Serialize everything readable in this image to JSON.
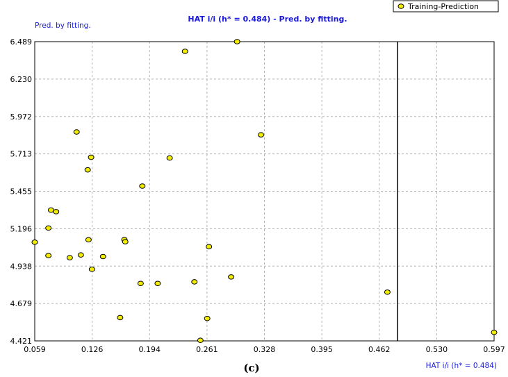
{
  "chart_data": {
    "type": "scatter",
    "title": "HAT i/i (h* = 0.484) - Pred. by fitting.",
    "ylabel": "Pred. by fitting.",
    "xlabel": "HAT i/i (h* = 0.484)",
    "caption": "(c)",
    "xlim": [
      0.059,
      0.597
    ],
    "ylim": [
      4.421,
      6.489
    ],
    "x_ticks": [
      "0.059",
      "0.126",
      "0.194",
      "0.261",
      "0.328",
      "0.395",
      "0.462",
      "0.530",
      "0.597"
    ],
    "y_ticks": [
      "4.421",
      "4.679",
      "4.938",
      "5.196",
      "5.455",
      "5.713",
      "5.972",
      "6.230",
      "6.489"
    ],
    "threshold_x": 0.484,
    "grid": true,
    "legend_position": "top-right",
    "series": [
      {
        "name": "Training-Prediction",
        "color": "#f2ec00",
        "edge_color": "#000000",
        "marker": "circle",
        "points": [
          {
            "x": 0.059,
            "y": 5.103
          },
          {
            "x": 0.075,
            "y": 5.011
          },
          {
            "x": 0.075,
            "y": 5.201
          },
          {
            "x": 0.078,
            "y": 5.325
          },
          {
            "x": 0.084,
            "y": 5.314
          },
          {
            "x": 0.1,
            "y": 4.996
          },
          {
            "x": 0.108,
            "y": 5.865
          },
          {
            "x": 0.113,
            "y": 5.015
          },
          {
            "x": 0.121,
            "y": 5.603
          },
          {
            "x": 0.122,
            "y": 5.12
          },
          {
            "x": 0.125,
            "y": 5.69
          },
          {
            "x": 0.126,
            "y": 4.916
          },
          {
            "x": 0.139,
            "y": 5.004
          },
          {
            "x": 0.159,
            "y": 4.582
          },
          {
            "x": 0.164,
            "y": 5.121
          },
          {
            "x": 0.165,
            "y": 5.106
          },
          {
            "x": 0.183,
            "y": 4.818
          },
          {
            "x": 0.185,
            "y": 5.491
          },
          {
            "x": 0.203,
            "y": 4.818
          },
          {
            "x": 0.217,
            "y": 5.685
          },
          {
            "x": 0.235,
            "y": 6.422
          },
          {
            "x": 0.246,
            "y": 4.829
          },
          {
            "x": 0.253,
            "y": 4.425
          },
          {
            "x": 0.261,
            "y": 4.576
          },
          {
            "x": 0.263,
            "y": 5.072
          },
          {
            "x": 0.289,
            "y": 4.863
          },
          {
            "x": 0.296,
            "y": 6.489
          },
          {
            "x": 0.324,
            "y": 5.845
          },
          {
            "x": 0.472,
            "y": 4.758
          },
          {
            "x": 0.597,
            "y": 4.48
          }
        ]
      }
    ]
  }
}
